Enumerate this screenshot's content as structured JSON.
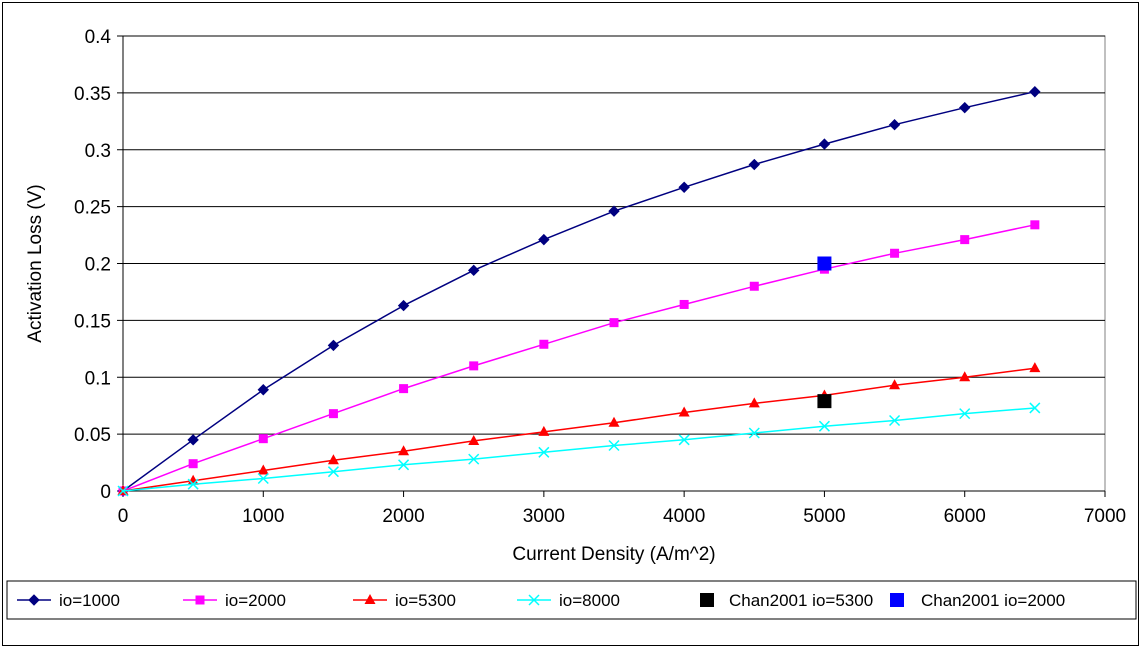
{
  "chart_data": {
    "type": "line",
    "title": "",
    "xlabel": "Current Density (A/m^2)",
    "ylabel": "Activation Loss (V)",
    "xlim": [
      0,
      7000
    ],
    "ylim": [
      0,
      0.4
    ],
    "x_ticks": [
      0,
      1000,
      2000,
      3000,
      4000,
      5000,
      6000,
      7000
    ],
    "y_ticks": [
      0,
      0.05,
      0.1,
      0.15,
      0.2,
      0.25,
      0.3,
      0.35,
      0.4
    ],
    "x_tick_labels": [
      "0",
      "1000",
      "2000",
      "3000",
      "4000",
      "5000",
      "6000",
      "7000"
    ],
    "y_tick_labels": [
      "0",
      "0.05",
      "0.1",
      "0.15",
      "0.2",
      "0.25",
      "0.3",
      "0.35",
      "0.4"
    ],
    "grid": "horizontal",
    "legend_position": "bottom",
    "series": [
      {
        "name": "io=1000",
        "color": "#000080",
        "marker": "diamond",
        "line": true,
        "x": [
          0,
          500,
          1000,
          1500,
          2000,
          2500,
          3000,
          3500,
          4000,
          4500,
          5000,
          5500,
          6000,
          6500
        ],
        "y": [
          0,
          0.045,
          0.089,
          0.128,
          0.163,
          0.194,
          0.221,
          0.246,
          0.267,
          0.287,
          0.305,
          0.322,
          0.337,
          0.351
        ]
      },
      {
        "name": "io=2000",
        "color": "#FF00FF",
        "marker": "square",
        "line": true,
        "x": [
          0,
          500,
          1000,
          1500,
          2000,
          2500,
          3000,
          3500,
          4000,
          4500,
          5000,
          5500,
          6000,
          6500
        ],
        "y": [
          0,
          0.024,
          0.046,
          0.068,
          0.09,
          0.11,
          0.129,
          0.148,
          0.164,
          0.18,
          0.195,
          0.209,
          0.221,
          0.234
        ]
      },
      {
        "name": "io=5300",
        "color": "#FF0000",
        "marker": "triangle",
        "line": true,
        "x": [
          0,
          500,
          1000,
          1500,
          2000,
          2500,
          3000,
          3500,
          4000,
          4500,
          5000,
          5500,
          6000,
          6500
        ],
        "y": [
          0,
          0.009,
          0.018,
          0.027,
          0.035,
          0.044,
          0.052,
          0.06,
          0.069,
          0.077,
          0.084,
          0.093,
          0.1,
          0.108
        ]
      },
      {
        "name": "io=8000",
        "color": "#00FFFF",
        "marker": "x",
        "line": true,
        "x": [
          0,
          500,
          1000,
          1500,
          2000,
          2500,
          3000,
          3500,
          4000,
          4500,
          5000,
          5500,
          6000,
          6500
        ],
        "y": [
          0,
          0.006,
          0.011,
          0.017,
          0.023,
          0.028,
          0.034,
          0.04,
          0.045,
          0.051,
          0.057,
          0.062,
          0.068,
          0.073
        ]
      },
      {
        "name": "Chan2001 io=5300",
        "color": "#000000",
        "marker": "square-large",
        "line": false,
        "x": [
          5000
        ],
        "y": [
          0.079
        ]
      },
      {
        "name": "Chan2001 io=2000",
        "color": "#0000FF",
        "marker": "square-large",
        "line": false,
        "x": [
          5000
        ],
        "y": [
          0.2
        ]
      }
    ]
  }
}
